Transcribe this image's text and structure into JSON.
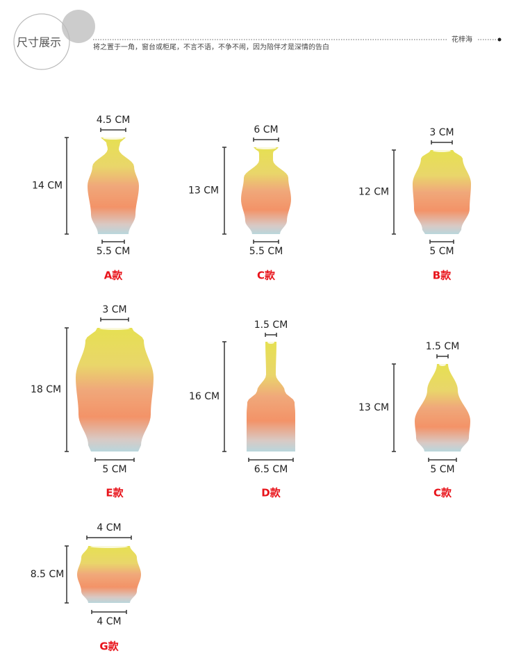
{
  "header": {
    "title": "尺寸展示",
    "subtitle": "将之置于一角，窗台或柜尾，不言不语，不争不闹，因为陪伴才是深情的告白",
    "brand": "花梓海"
  },
  "items": [
    {
      "top": "4.5 CM",
      "height": "14 CM",
      "bottom": "5.5 CM",
      "name": "A款"
    },
    {
      "top": "6 CM",
      "height": "13 CM",
      "bottom": "5.5 CM",
      "name": "C款"
    },
    {
      "top": "3 CM",
      "height": "12 CM",
      "bottom": "5 CM",
      "name": "B款"
    },
    {
      "top": "3 CM",
      "height": "18 CM",
      "bottom": "5 CM",
      "name": "E款"
    },
    {
      "top": "1.5 CM",
      "height": "16 CM",
      "bottom": "6.5 CM",
      "name": "D款"
    },
    {
      "top": "1.5 CM",
      "height": "13 CM",
      "bottom": "5 CM",
      "name": "C款"
    },
    {
      "top": "4 CM",
      "height": "8.5 CM",
      "bottom": "4 CM",
      "name": "G款"
    }
  ]
}
